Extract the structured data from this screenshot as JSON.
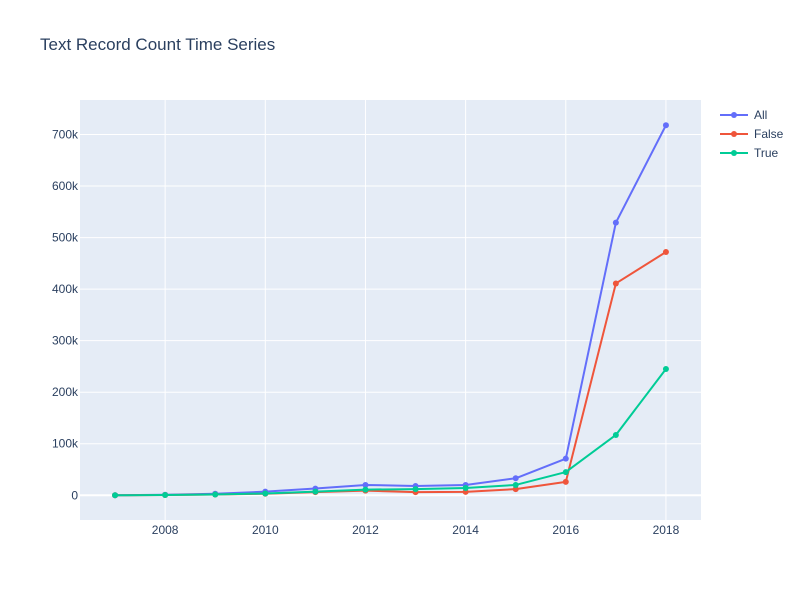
{
  "chart_data": {
    "type": "line",
    "title": "Text Record Count Time Series",
    "xlabel": "",
    "ylabel": "",
    "x": [
      2007,
      2008,
      2009,
      2010,
      2011,
      2012,
      2013,
      2014,
      2015,
      2016,
      2017,
      2018
    ],
    "x_ticks": [
      2008,
      2010,
      2012,
      2014,
      2016,
      2018
    ],
    "y_ticks": [
      0,
      100000,
      200000,
      300000,
      400000,
      500000,
      600000,
      700000
    ],
    "y_tick_labels": [
      "0",
      "100k",
      "200k",
      "300k",
      "400k",
      "500k",
      "600k",
      "700k"
    ],
    "xlim": [
      2006.3,
      2018.7
    ],
    "ylim": [
      -48000,
      767000
    ],
    "grid": true,
    "legend_position": "top-right",
    "series": [
      {
        "name": "All",
        "color": "#636efa",
        "values": [
          0,
          1000,
          3000,
          7000,
          13000,
          20000,
          18000,
          20000,
          33000,
          71000,
          529000,
          718000
        ]
      },
      {
        "name": "False",
        "color": "#ef553b",
        "values": [
          0,
          500,
          1500,
          3000,
          6000,
          9000,
          6000,
          6500,
          12000,
          26000,
          411000,
          472000
        ]
      },
      {
        "name": "True",
        "color": "#00cc96",
        "values": [
          0,
          500,
          1500,
          3500,
          7000,
          11000,
          12000,
          14000,
          20000,
          45000,
          117000,
          245000
        ]
      }
    ]
  }
}
